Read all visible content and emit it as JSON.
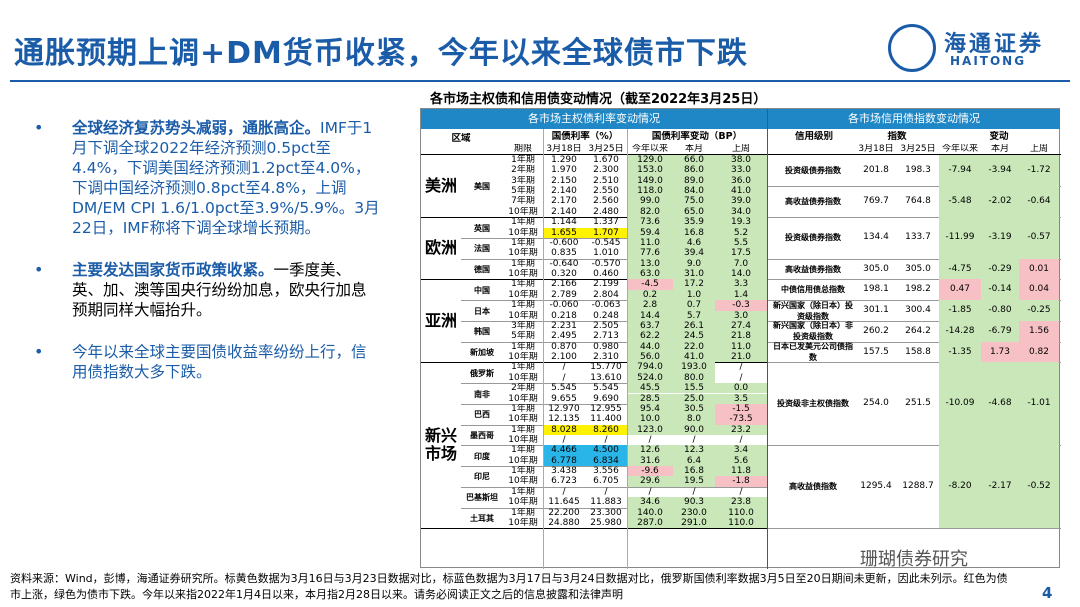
{
  "title": "通胀预期上调+DM货币收紧，今年以来全球债市下跌",
  "logo": {
    "cn": "海通证券",
    "en": "HAITONG"
  },
  "table_title": "各市场主权债和信用债变动情况（截至2022年3月25日）",
  "bullets": [
    {
      "head": "全球经济复苏势头减弱，通胀高企。",
      "body": "IMF于1月下调全球2022年经济预测0.5pct至4.4%，下调美国经济预测1.2pct至4.0%，下调中国经济预测0.8pct至4.8%，上调DM/EM CPI 1.6/1.0pct至3.9%/5.9%。3月22日，IMF称将下调全球增长预期。"
    },
    {
      "head": "主要发达国家货币政策收紧。",
      "body": "一季度美、英、加、澳等国央行纷纷加息，欧央行加息预期同样大幅抬升。"
    },
    {
      "head": "",
      "body": "今年以来全球主要国债收益率纷纷上行，信用债指数大多下跌。"
    }
  ],
  "left_table": {
    "section_title": "各市场主权债利率变动情况",
    "col_region": "区域",
    "col_term": "期限",
    "col_rate": "国债利率（%）",
    "col_change": "国债利率变动（BP）",
    "sub_rate": [
      "3月18日",
      "3月25日"
    ],
    "sub_change": [
      "今年以来",
      "本月",
      "上周"
    ],
    "regions": [
      {
        "name": "美洲",
        "countries": [
          {
            "name": "美国",
            "rows": [
              [
                "1年期",
                "1.290",
                "1.670",
                "129.0",
                "66.0",
                "38.0"
              ],
              [
                "2年期",
                "1.970",
                "2.300",
                "153.0",
                "86.0",
                "33.0"
              ],
              [
                "3年期",
                "2.150",
                "2.510",
                "149.0",
                "89.0",
                "36.0"
              ],
              [
                "5年期",
                "2.140",
                "2.550",
                "118.0",
                "84.0",
                "41.0"
              ],
              [
                "7年期",
                "2.170",
                "2.560",
                "99.0",
                "75.0",
                "39.0"
              ],
              [
                "10年期",
                "2.140",
                "2.480",
                "82.0",
                "65.0",
                "34.0"
              ]
            ]
          }
        ]
      },
      {
        "name": "欧洲",
        "countries": [
          {
            "name": "英国",
            "rows": [
              [
                "1年期",
                "1.144",
                "1.337",
                "73.6",
                "35.9",
                "19.3"
              ],
              [
                "10年期",
                "1.655",
                "1.707",
                "59.4",
                "16.8",
                "5.2"
              ]
            ]
          },
          {
            "name": "法国",
            "rows": [
              [
                "1年期",
                "-0.600",
                "-0.545",
                "11.0",
                "4.6",
                "5.5"
              ],
              [
                "10年期",
                "0.835",
                "1.010",
                "77.6",
                "39.4",
                "17.5"
              ]
            ]
          },
          {
            "name": "德国",
            "rows": [
              [
                "1年期",
                "-0.640",
                "-0.570",
                "13.0",
                "9.0",
                "7.0"
              ],
              [
                "10年期",
                "0.320",
                "0.460",
                "63.0",
                "31.0",
                "14.0"
              ]
            ]
          }
        ]
      },
      {
        "name": "亚洲",
        "countries": [
          {
            "name": "中国",
            "rows": [
              [
                "1年期",
                "2.166",
                "2.199",
                "-4.5",
                "17.2",
                "3.3"
              ],
              [
                "10年期",
                "2.789",
                "2.804",
                "0.2",
                "1.0",
                "1.4"
              ]
            ]
          },
          {
            "name": "日本",
            "rows": [
              [
                "1年期",
                "-0.060",
                "-0.063",
                "2.8",
                "0.7",
                "-0.3"
              ],
              [
                "10年期",
                "0.218",
                "0.248",
                "14.4",
                "5.7",
                "3.0"
              ]
            ]
          },
          {
            "name": "韩国",
            "rows": [
              [
                "3年期",
                "2.231",
                "2.505",
                "63.7",
                "26.1",
                "27.4"
              ],
              [
                "5年期",
                "2.495",
                "2.713",
                "62.2",
                "24.5",
                "21.8"
              ]
            ]
          },
          {
            "name": "新加坡",
            "rows": [
              [
                "1年期",
                "0.870",
                "0.980",
                "44.0",
                "22.0",
                "11.0"
              ],
              [
                "10年期",
                "2.100",
                "2.310",
                "56.0",
                "41.0",
                "21.0"
              ]
            ]
          }
        ]
      },
      {
        "name": "新兴市场",
        "countries": [
          {
            "name": "俄罗斯",
            "rows": [
              [
                "1年期",
                "/",
                "15.770",
                "794.0",
                "193.0",
                "/"
              ],
              [
                "10年期",
                "/",
                "13.610",
                "524.0",
                "80.0",
                "/"
              ]
            ]
          },
          {
            "name": "南非",
            "rows": [
              [
                "2年期",
                "5.545",
                "5.545",
                "45.5",
                "15.5",
                "0.0"
              ],
              [
                "10年期",
                "9.655",
                "9.690",
                "28.5",
                "25.0",
                "3.5"
              ]
            ]
          },
          {
            "name": "巴西",
            "rows": [
              [
                "1年期",
                "12.970",
                "12.955",
                "95.4",
                "30.5",
                "-1.5"
              ],
              [
                "10年期",
                "12.135",
                "11.400",
                "10.0",
                "8.0",
                "-73.5"
              ]
            ]
          },
          {
            "name": "墨西哥",
            "rows": [
              [
                "1年期",
                "8.028",
                "8.260",
                "123.0",
                "90.0",
                "23.2"
              ],
              [
                "10年期",
                "/",
                "/",
                "/",
                "/",
                "/"
              ]
            ]
          },
          {
            "name": "印度",
            "rows": [
              [
                "1年期",
                "4.466",
                "4.500",
                "12.6",
                "12.3",
                "3.4"
              ],
              [
                "10年期",
                "6.778",
                "6.834",
                "31.6",
                "6.4",
                "5.6"
              ]
            ]
          },
          {
            "name": "印尼",
            "rows": [
              [
                "1年期",
                "3.438",
                "3.556",
                "-9.6",
                "16.8",
                "11.8"
              ],
              [
                "10年期",
                "6.723",
                "6.705",
                "29.6",
                "19.5",
                "-1.8"
              ]
            ]
          },
          {
            "name": "巴基斯坦",
            "rows": [
              [
                "1年期",
                "/",
                "/",
                "/",
                "/",
                "/"
              ],
              [
                "10年期",
                "11.645",
                "11.883",
                "34.6",
                "90.3",
                "23.8"
              ]
            ]
          },
          {
            "name": "土耳其",
            "rows": [
              [
                "1年期",
                "22.200",
                "23.300",
                "140.0",
                "230.0",
                "110.0"
              ],
              [
                "10年期",
                "24.880",
                "25.980",
                "287.0",
                "291.0",
                "110.0"
              ]
            ]
          }
        ]
      }
    ]
  },
  "right_table": {
    "section_title": "各市场信用债指数变动情况",
    "col_level": "信用级别",
    "col_index": "指数",
    "col_change": "变动",
    "sub_index": [
      "3月18日",
      "3月25日"
    ],
    "sub_change": [
      "今年以来",
      "本月",
      "上周"
    ],
    "rows": [
      [
        "投资级债券指数",
        "201.8",
        "198.3",
        "-7.94",
        "-3.94",
        "-1.72"
      ],
      [
        "高收益债券指数",
        "769.7",
        "764.8",
        "-5.48",
        "-2.02",
        "-0.64"
      ],
      [
        "投资级债券指数",
        "134.4",
        "133.7",
        "-11.99",
        "-3.19",
        "-0.57"
      ],
      [
        "高收益债券指数",
        "305.0",
        "305.0",
        "-4.75",
        "-0.29",
        "0.01"
      ],
      [
        "中债信用债总指数",
        "198.1",
        "198.2",
        "0.47",
        "-0.14",
        "0.04"
      ],
      [
        "新兴国家（除日本）投资级指数",
        "301.1",
        "300.4",
        "-1.85",
        "-0.80",
        "-0.25"
      ],
      [
        "新兴国家（除日本）非投资级指数",
        "260.2",
        "264.2",
        "-14.28",
        "-6.79",
        "1.56"
      ],
      [
        "日本已发美元公司债指数",
        "157.5",
        "158.8",
        "-1.35",
        "1.73",
        "0.82"
      ],
      [
        "投资级非主权债指数",
        "254.0",
        "251.5",
        "-10.09",
        "-4.68",
        "-1.01"
      ],
      [
        "高收益债指数",
        "1295.4",
        "1288.7",
        "-8.20",
        "-2.17",
        "-0.52"
      ]
    ]
  },
  "footer": "资料来源：Wind，彭博，海通证券研究所。标黄色数据为3月16日与3月23日数据对比，标蓝色数据为3月17日与3月24日数据对比，俄罗斯国债利率数据3月5日至20日期间未更新，因此未列示。红色为债市上涨，绿色为债市下跌。今年以来指2022年1月4日以来，本月指2月28日以来。请务必阅读正文之后的信息披露和法律声明",
  "watermark": "珊瑚债券研究",
  "page_number": "4",
  "colors": {
    "brand": "#1b5ca8",
    "header": "#1f87c6",
    "up": "#c9e7b9",
    "down": "#f6c0c4",
    "yellow": "#fff200",
    "blue": "#29b5e8"
  }
}
